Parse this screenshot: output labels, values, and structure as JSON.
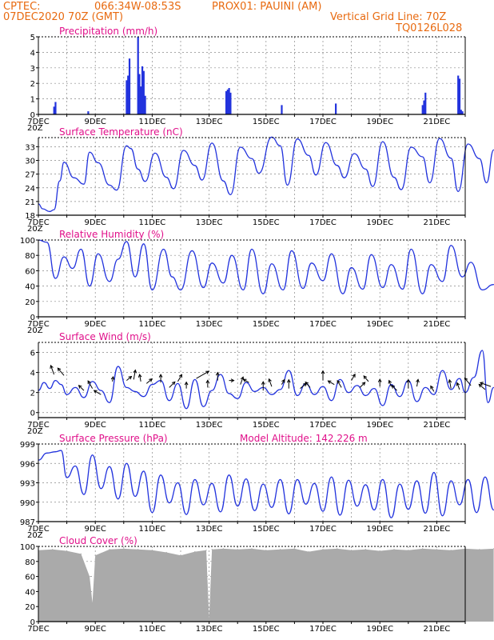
{
  "header": {
    "source": "CPTEC:",
    "coords": "066:34W-08:53S",
    "location": "PROX01: PAUINI (AM)",
    "run": "07DEC2020 70Z (GMT)",
    "grid_note": "Vertical Grid Line: 70Z",
    "model_id": "TQ0126L028"
  },
  "x_labels": [
    "7DEC",
    "9DEC",
    "11DEC",
    "13DEC",
    "15DEC",
    "17DEC",
    "19DEC",
    "21DEC"
  ],
  "x_overlap_text": "20Z",
  "colors": {
    "line": "#2233dd",
    "grid": "#888888",
    "header": "#e86a10",
    "title": "#e0108a",
    "cloud": "#aaaaaa",
    "arrow": "#000000"
  },
  "chart_data": [
    {
      "type": "bar",
      "title": "Precipitation (mm/h)",
      "ylim": [
        0,
        5
      ],
      "yticks": [
        "0",
        "1",
        "2",
        "3",
        "4",
        "5"
      ],
      "x_days": [
        0.55,
        0.6,
        1.75,
        3.1,
        3.15,
        3.2,
        3.5,
        3.55,
        3.6,
        3.65,
        3.7,
        3.75,
        6.6,
        6.65,
        6.7,
        6.75,
        8.55,
        10.45,
        13.5,
        13.55,
        13.6,
        14.75,
        14.8,
        14.85,
        14.9,
        16.5,
        16.55,
        16.6,
        16.65,
        16.7
      ],
      "values": [
        0.5,
        0.8,
        0.2,
        2.2,
        2.5,
        3.6,
        5,
        2.6,
        1.8,
        3.1,
        2.8,
        1.2,
        1.5,
        1.6,
        1.7,
        1.4,
        0.6,
        0.7,
        0.6,
        0.9,
        1.4,
        2.5,
        2.3,
        0.3,
        0.2,
        0.9,
        1.2,
        1.8,
        1.4,
        1.6
      ]
    },
    {
      "type": "line",
      "title": "Surface Temperature (nC)",
      "ylim": [
        18,
        35
      ],
      "yticks": [
        "18",
        "21",
        "24",
        "27",
        "30",
        "33"
      ],
      "x": [
        0,
        0.15,
        0.4,
        0.55,
        0.75,
        0.9,
        1.25,
        1.6,
        1.8,
        2.1,
        2.5,
        2.75,
        3.1,
        3.25,
        3.5,
        3.75,
        4.1,
        4.5,
        4.75,
        5.1,
        5.5,
        5.75,
        6.1,
        6.5,
        6.75,
        7.1,
        7.5,
        7.75,
        8.2,
        8.5,
        8.75,
        9.1,
        9.5,
        9.75,
        10.1,
        10.5,
        10.75,
        11.1,
        11.5,
        11.75,
        12.1,
        12.5,
        12.75,
        13.1,
        13.5,
        13.75,
        14.1,
        14.5,
        14.75,
        15.1,
        15.5,
        15.75,
        16.0
      ],
      "values": [
        20.5,
        19.4,
        18.8,
        19.2,
        25.5,
        29.6,
        26.2,
        24.8,
        31.8,
        29.5,
        24.6,
        23.5,
        33.2,
        32.6,
        28.1,
        25.4,
        31.6,
        26.3,
        23.8,
        32.2,
        28.9,
        25.7,
        33.8,
        25.5,
        22.5,
        32.9,
        30.4,
        27.2,
        35.1,
        33.2,
        24.6,
        34.7,
        31.1,
        26.8,
        33.9,
        28.9,
        26.2,
        31.5,
        28.1,
        24.3,
        34.1,
        26.3,
        23.6,
        32.9,
        30.8,
        25.1,
        34.8,
        30.5,
        23.2,
        33.6,
        30.4,
        25.1,
        32.3
      ]
    },
    {
      "type": "line",
      "title": "Relative Humidity (%)",
      "ylim": [
        0,
        100
      ],
      "yticks": [
        "0",
        "20",
        "40",
        "60",
        "80",
        "100"
      ],
      "x": [
        0,
        0.3,
        0.6,
        0.9,
        1.2,
        1.5,
        1.8,
        2.1,
        2.5,
        2.8,
        3.1,
        3.4,
        3.7,
        4.0,
        4.4,
        4.7,
        5.0,
        5.4,
        5.8,
        6.1,
        6.5,
        6.8,
        7.2,
        7.5,
        7.9,
        8.2,
        8.6,
        8.9,
        9.3,
        9.6,
        10.0,
        10.3,
        10.7,
        11.0,
        11.4,
        11.7,
        12.1,
        12.4,
        12.8,
        13.1,
        13.5,
        13.8,
        14.2,
        14.5,
        14.9,
        15.2,
        15.6,
        16.0
      ],
      "values": [
        100,
        97,
        50,
        78,
        63,
        88,
        40,
        82,
        46,
        75,
        98,
        52,
        95,
        35,
        88,
        52,
        35,
        86,
        38,
        70,
        44,
        80,
        35,
        88,
        30,
        69,
        35,
        86,
        37,
        70,
        47,
        82,
        30,
        64,
        36,
        81,
        38,
        68,
        36,
        88,
        30,
        68,
        46,
        93,
        52,
        71,
        35,
        42
      ]
    },
    {
      "type": "line",
      "title": "Surface Wind (m/s)",
      "ylim": [
        -0.5,
        7
      ],
      "yticks": [
        "0",
        "2",
        "4",
        "6"
      ],
      "x": [
        0,
        0.2,
        0.4,
        0.6,
        0.8,
        1.0,
        1.3,
        1.6,
        1.9,
        2.2,
        2.5,
        2.8,
        3.1,
        3.4,
        3.7,
        4.0,
        4.3,
        4.6,
        4.9,
        5.2,
        5.5,
        5.8,
        6.1,
        6.4,
        6.7,
        7.0,
        7.3,
        7.6,
        7.9,
        8.2,
        8.5,
        8.8,
        9.1,
        9.4,
        9.7,
        10.0,
        10.3,
        10.6,
        10.9,
        11.2,
        11.5,
        11.8,
        12.1,
        12.4,
        12.7,
        13.0,
        13.3,
        13.6,
        13.9,
        14.2,
        14.5,
        14.8,
        15.0,
        15.3,
        15.6,
        15.8,
        16.0
      ],
      "values": [
        2.2,
        3.0,
        2.4,
        3.2,
        2.8,
        1.8,
        2.5,
        1.5,
        3.1,
        2.2,
        1.0,
        4.6,
        2.5,
        2.1,
        1.6,
        2.8,
        3.2,
        1.2,
        2.9,
        0.4,
        3.3,
        0.6,
        2.2,
        3.8,
        1.9,
        1.4,
        3.0,
        2.1,
        2.5,
        1.8,
        2.3,
        4.2,
        1.7,
        2.9,
        1.8,
        2.6,
        1.2,
        3.3,
        2.0,
        2.7,
        1.7,
        2.4,
        0.7,
        2.8,
        1.6,
        3.2,
        1.1,
        2.5,
        1.8,
        4.2,
        2.3,
        3.4,
        2.0,
        3.5,
        6.2,
        1.0,
        2.5
      ],
      "arrows_x": [
        0.55,
        0.9,
        1.6,
        1.9,
        2.2,
        2.6,
        3.1,
        3.35,
        3.6,
        3.8,
        4.3,
        4.6,
        4.9,
        5.2,
        5.55,
        5.95,
        6.3,
        6.7,
        7.1,
        7.4,
        7.9,
        8.2,
        8.55,
        8.8,
        9.2,
        9.55,
        10.0,
        10.4,
        10.65,
        11.0,
        11.3,
        11.6,
        12.0,
        12.4,
        12.6,
        13.0,
        13.3,
        13.9,
        14.5,
        14.8,
        15.2,
        15.7,
        15.9
      ],
      "arrows_y": [
        3.8,
        3.7,
        2.2,
        2.4,
        1.8,
        3.1,
        3.2,
        3.3,
        3.1,
        2.9,
        3.0,
        2.5,
        3.1,
        2.4,
        3.4,
        2.5,
        3.2,
        3.2,
        2.8,
        3.0,
        2.2,
        2.6,
        2.8,
        2.4,
        2.4,
        2.5,
        3.2,
        2.8,
        2.5,
        3.2,
        2.5,
        3.1,
        2.6,
        2.6,
        2.2,
        2.4,
        2.6,
        2.1,
        2.4,
        2.3,
        2.7,
        2.3,
        2.6
      ],
      "arrows_ang": [
        -110,
        -130,
        -135,
        -120,
        -150,
        -80,
        -40,
        -80,
        -100,
        -40,
        -90,
        -45,
        -60,
        -90,
        -30,
        -90,
        -90,
        0,
        -70,
        -150,
        -90,
        -110,
        -60,
        -90,
        -40,
        -130,
        -90,
        -150,
        -120,
        -60,
        -45,
        -130,
        -90,
        -110,
        -135,
        -90,
        -80,
        -120,
        -100,
        -110,
        -130,
        -140,
        -160
      ],
      "arrows_len": [
        12,
        12,
        9,
        11,
        10,
        6,
        8,
        12,
        9,
        9,
        10,
        10,
        10,
        8,
        18,
        9,
        10,
        6,
        10,
        8,
        11,
        10,
        7,
        11,
        10,
        9,
        12,
        9,
        10,
        9,
        9,
        9,
        9,
        8,
        9,
        11,
        9,
        8,
        11,
        9,
        12,
        10,
        14
      ]
    },
    {
      "type": "line",
      "title": "Surface Pressure (hPa)",
      "subtitle": "Model Altitude: 142.226 m",
      "ylim": [
        987,
        999
      ],
      "yticks": [
        "987",
        "990",
        "993",
        "996",
        "999"
      ],
      "x": [
        0,
        0.3,
        0.6,
        0.8,
        1.0,
        1.3,
        1.6,
        1.9,
        2.2,
        2.5,
        2.8,
        3.1,
        3.4,
        3.7,
        4.0,
        4.3,
        4.6,
        4.9,
        5.2,
        5.5,
        5.8,
        6.1,
        6.4,
        6.7,
        7.0,
        7.3,
        7.6,
        7.9,
        8.2,
        8.5,
        8.8,
        9.1,
        9.4,
        9.7,
        10.0,
        10.3,
        10.6,
        10.9,
        11.2,
        11.5,
        11.8,
        12.1,
        12.4,
        12.7,
        13.0,
        13.3,
        13.6,
        13.9,
        14.2,
        14.5,
        14.8,
        15.1,
        15.4,
        15.7,
        16.0
      ],
      "values": [
        996.5,
        997.6,
        997.8,
        998.0,
        993.8,
        995.6,
        991.2,
        997.3,
        992.1,
        995.5,
        990.5,
        996.0,
        990.9,
        994.8,
        988.4,
        994.2,
        989.9,
        993.0,
        988.1,
        993.5,
        989.6,
        992.9,
        988.5,
        994.2,
        989.4,
        993.6,
        988.7,
        992.8,
        989.2,
        993.5,
        988.2,
        993.5,
        989.7,
        992.9,
        988.6,
        993.9,
        988.0,
        993.4,
        989.4,
        992.7,
        988.8,
        993.5,
        987.6,
        992.8,
        988.9,
        993.3,
        988.3,
        994.6,
        987.9,
        993.3,
        989.6,
        993.5,
        988.4,
        993.9,
        988.8
      ]
    },
    {
      "type": "area",
      "title": "Cloud Cover (%)",
      "ylim": [
        0,
        100
      ],
      "yticks": [
        "0",
        "20",
        "40",
        "60",
        "80",
        "100"
      ],
      "x": [
        0,
        0.5,
        1.0,
        1.5,
        1.8,
        1.9,
        2.0,
        2.5,
        3.0,
        3.5,
        4.0,
        4.5,
        5.0,
        5.5,
        5.9,
        6.0,
        6.1,
        6.5,
        7.0,
        7.5,
        8.0,
        8.5,
        9.0,
        9.5,
        10.0,
        10.5,
        11.0,
        11.5,
        12.0,
        12.5,
        13.0,
        13.5,
        14.0,
        14.5,
        15.0,
        15.5,
        16.0
      ],
      "values": [
        95,
        96,
        94,
        90,
        60,
        25,
        88,
        96,
        97,
        96,
        95,
        92,
        88,
        93,
        95,
        4,
        96,
        97,
        96,
        97,
        95,
        96,
        97,
        93,
        96,
        97,
        95,
        96,
        94,
        96,
        95,
        97,
        96,
        95,
        97,
        96,
        97
      ]
    }
  ]
}
